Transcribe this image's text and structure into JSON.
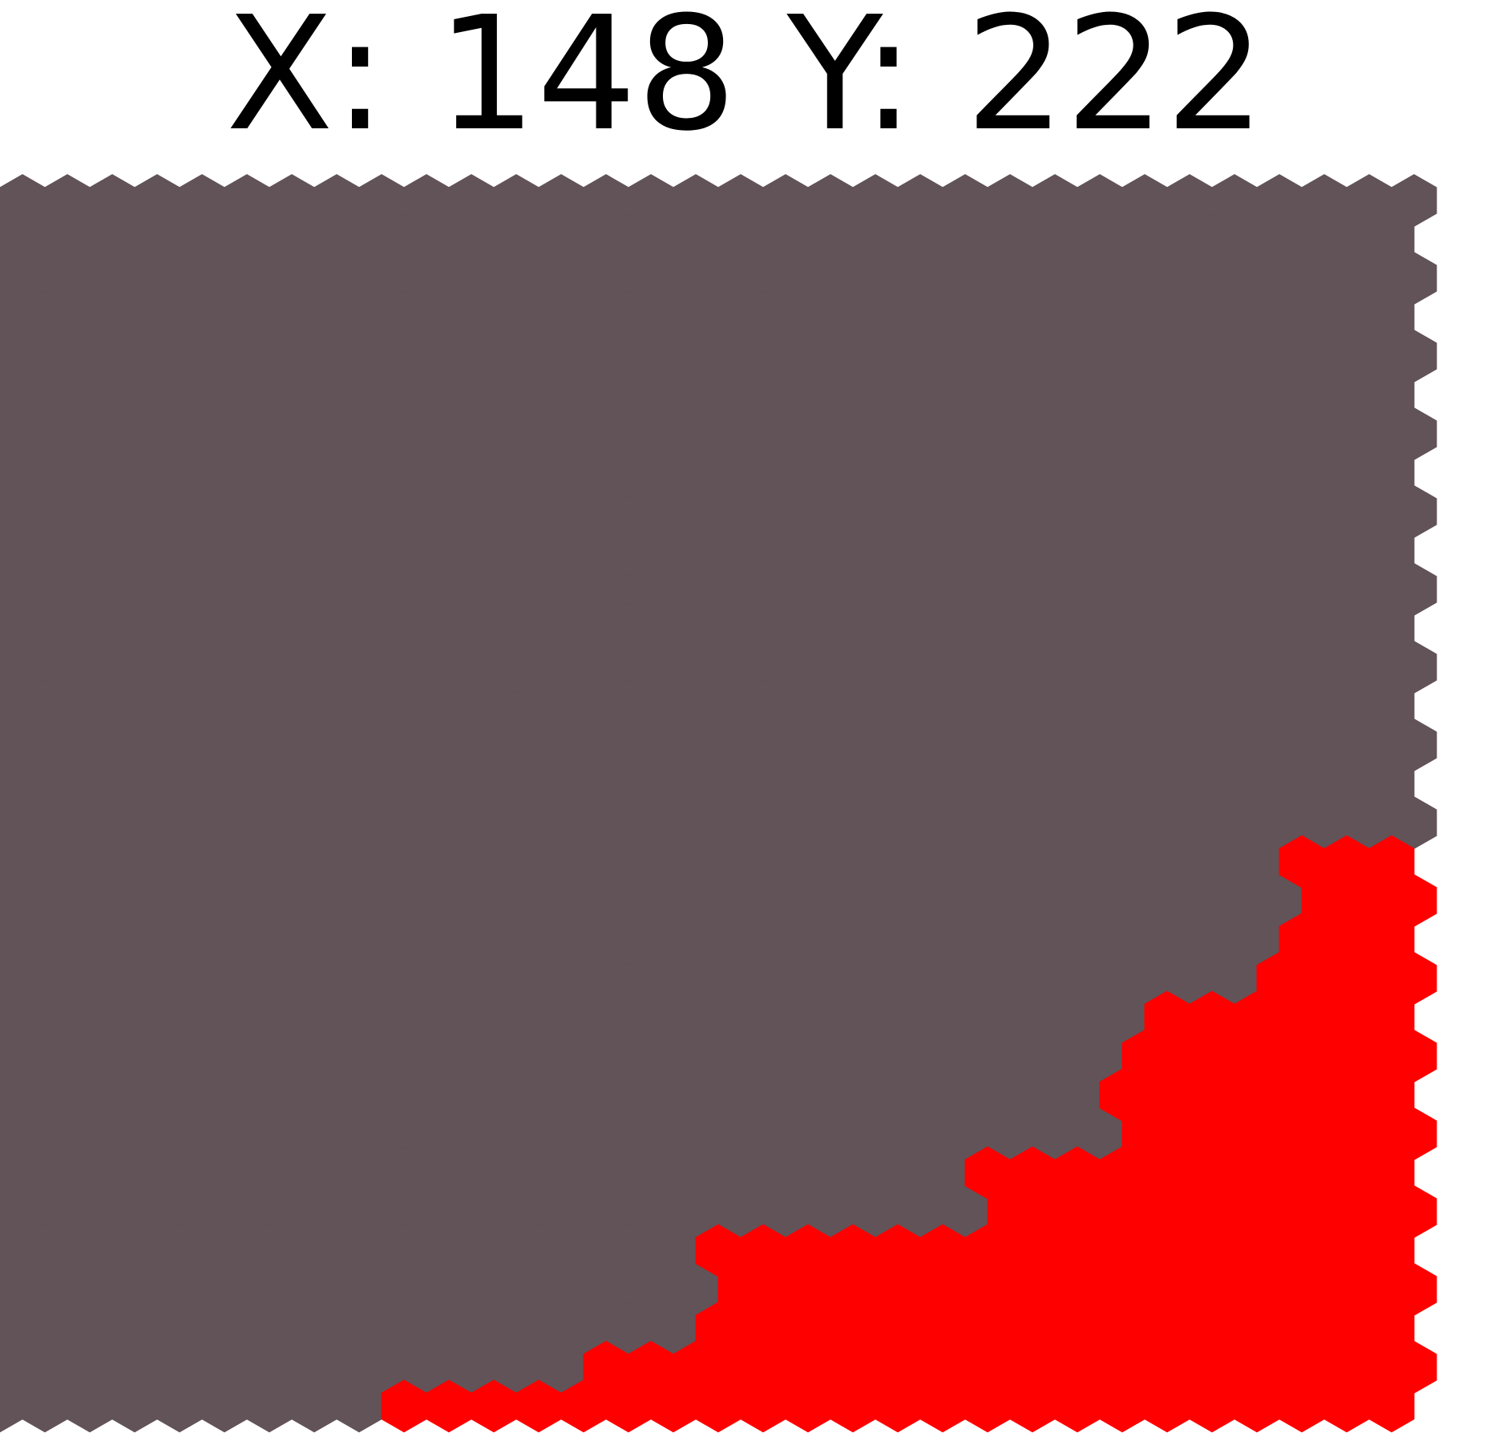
{
  "readout": {
    "x_label": "X:",
    "x_value": "148",
    "y_label": "Y:",
    "y_value": "222"
  },
  "board": {
    "colors": {
      "land": "#615358",
      "territory": "#ff0000"
    }
  }
}
